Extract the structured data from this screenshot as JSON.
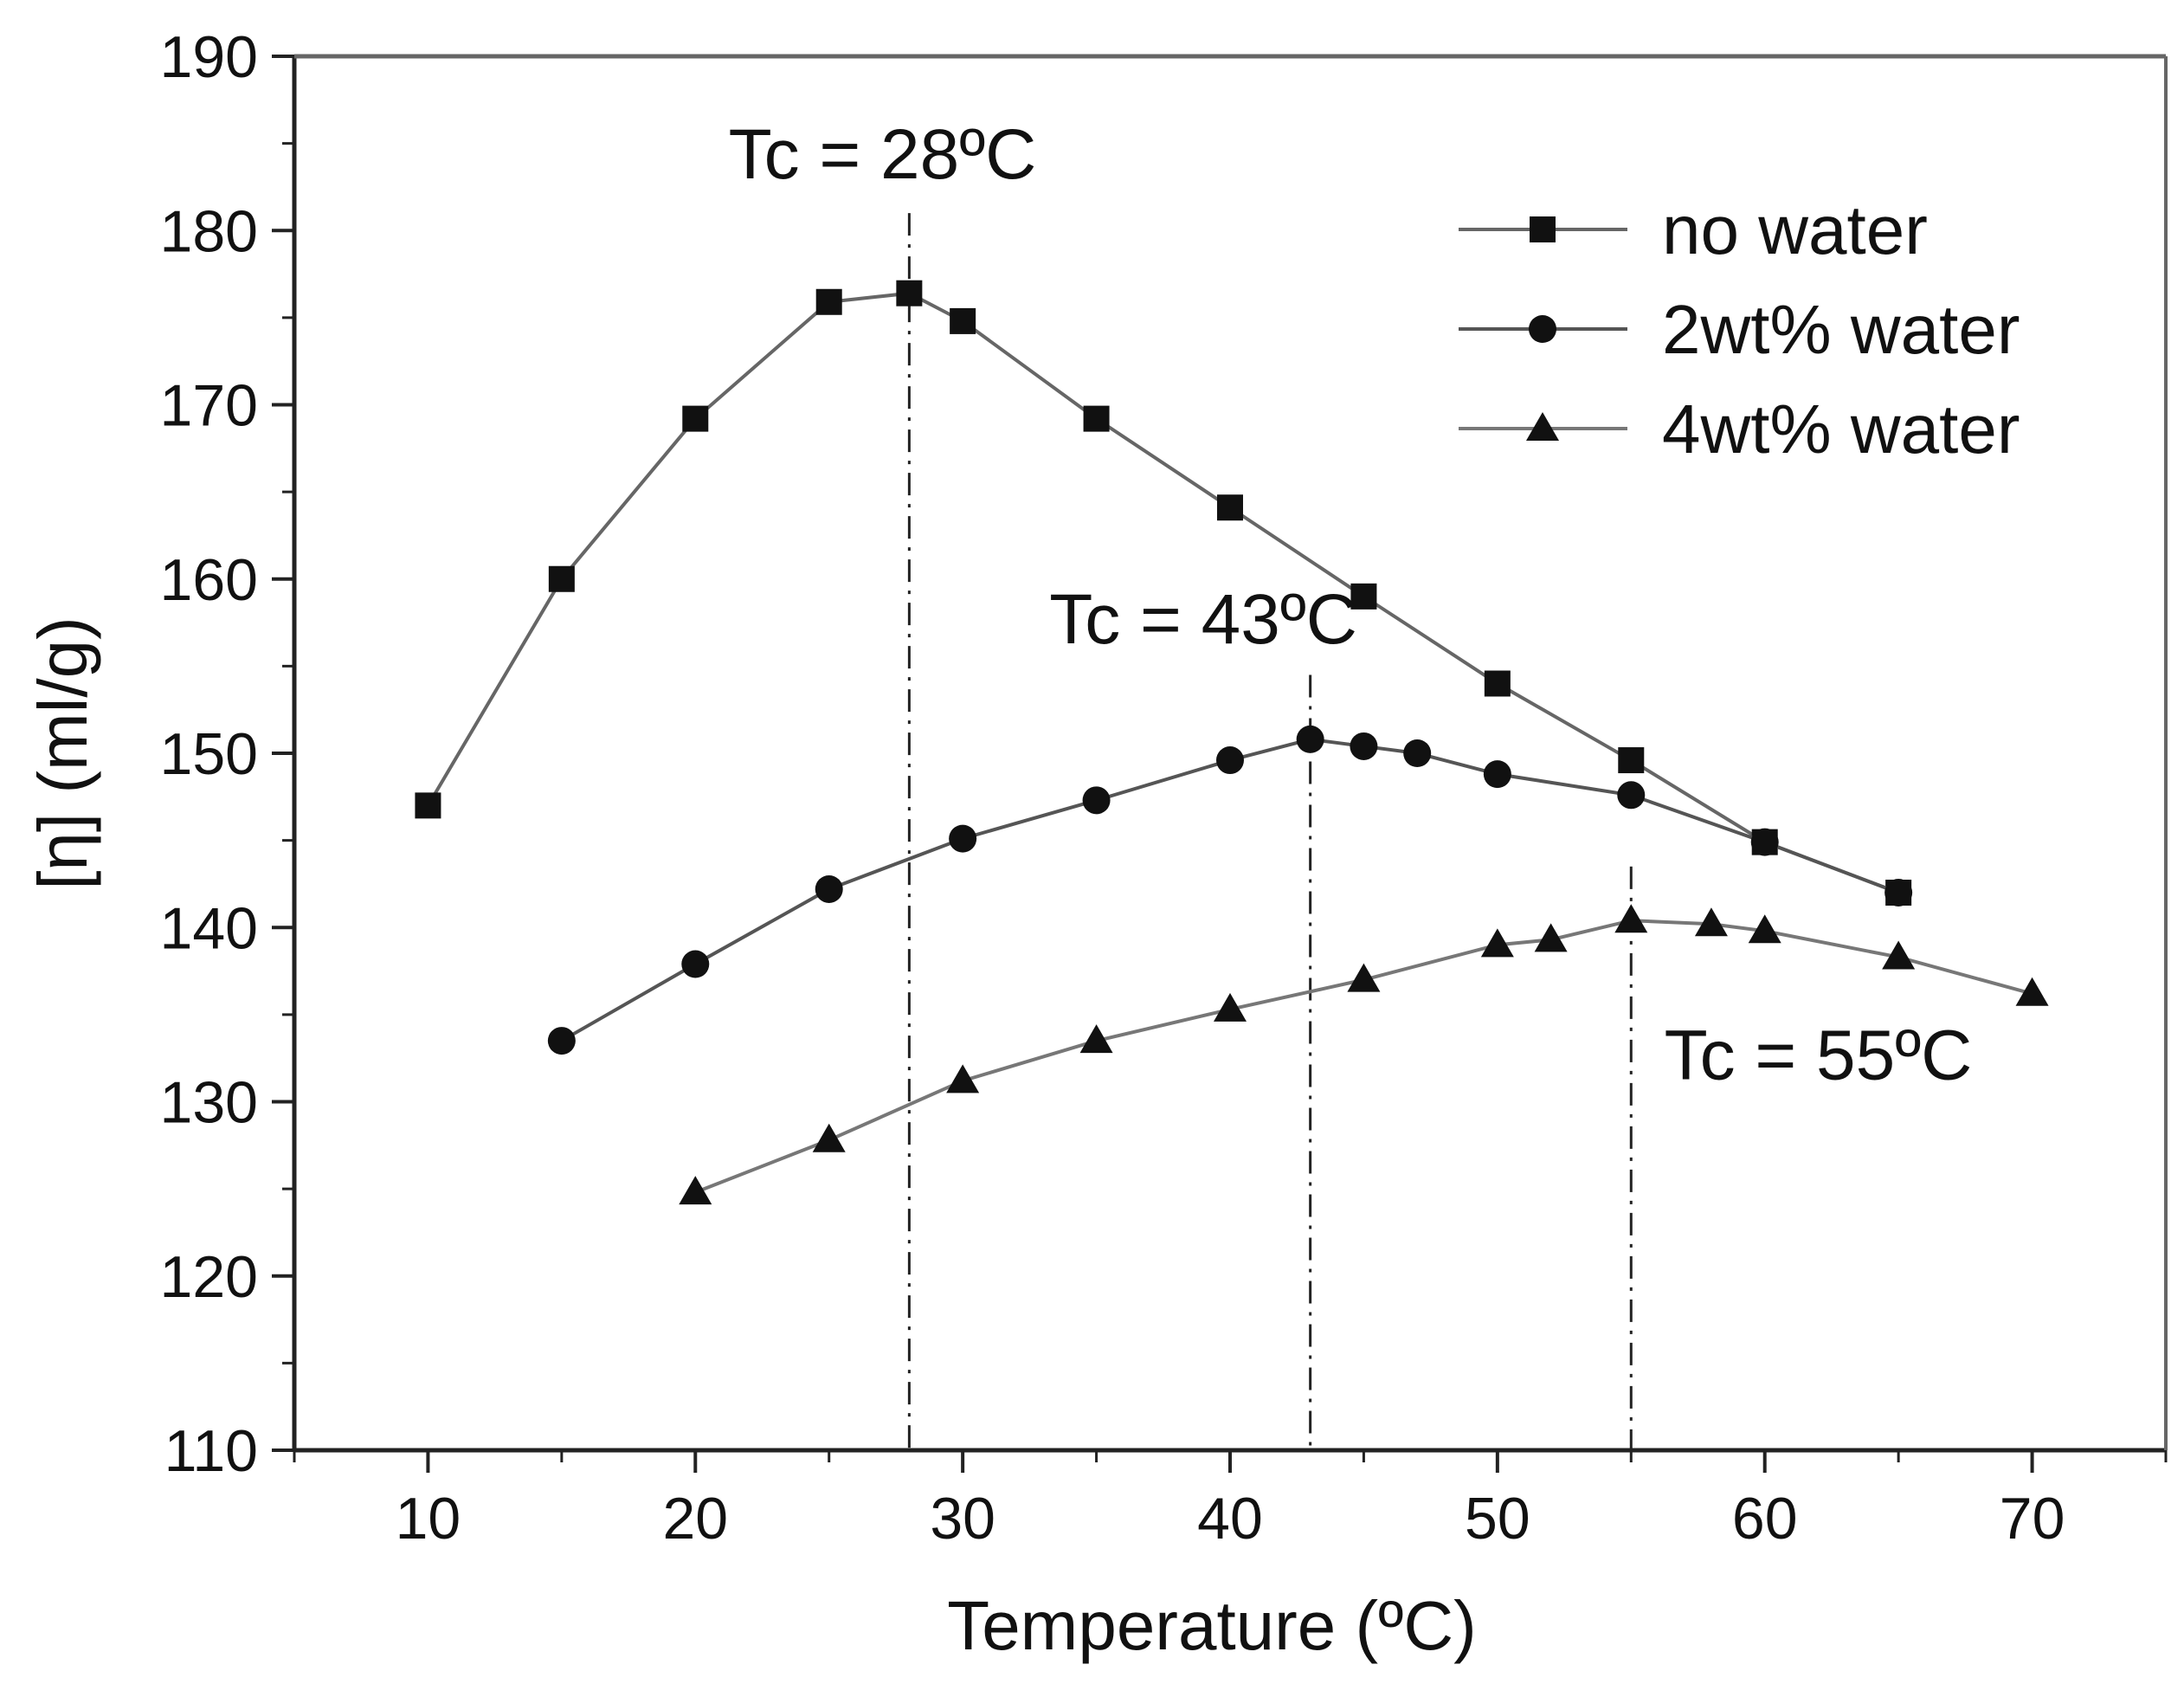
{
  "chart_data": {
    "type": "line",
    "title": "",
    "xlabel": "Temperature (ºC)",
    "ylabel": "[η] (ml/g)",
    "xlim": [
      5,
      75
    ],
    "ylim": [
      110,
      190
    ],
    "xticks": [
      10,
      20,
      30,
      40,
      50,
      60,
      70
    ],
    "yticks": [
      110,
      120,
      130,
      140,
      150,
      160,
      170,
      180,
      190
    ],
    "grid": false,
    "legend_position": "top-right",
    "series": [
      {
        "name": "no water",
        "marker": "square",
        "x": [
          10,
          15,
          20,
          25,
          28,
          30,
          35,
          40,
          45,
          50,
          55,
          60,
          65
        ],
        "y": [
          147,
          160,
          169.2,
          175.9,
          176.4,
          174.8,
          169.2,
          164.1,
          159,
          154,
          149.6,
          144.9,
          142
        ]
      },
      {
        "name": "2wt% water",
        "marker": "circle",
        "x": [
          15,
          20,
          25,
          30,
          35,
          40,
          43,
          45,
          47,
          50,
          55,
          60,
          65
        ],
        "y": [
          133.5,
          137.9,
          142.2,
          145.1,
          147.3,
          149.6,
          150.8,
          150.4,
          150,
          148.8,
          147.6,
          144.9,
          142
        ]
      },
      {
        "name": "4wt% water",
        "marker": "triangle",
        "x": [
          20,
          25,
          30,
          35,
          40,
          45,
          50,
          52,
          55,
          58,
          60,
          65,
          70
        ],
        "y": [
          124.8,
          127.8,
          131.2,
          133.5,
          135.3,
          137,
          139,
          139.3,
          140.4,
          140.2,
          139.8,
          138.3,
          136.2
        ]
      }
    ],
    "annotations": [
      {
        "text": "Tc = 28ºC",
        "x": 28,
        "line_top": 181,
        "label_anchor": [
          27,
          183
        ]
      },
      {
        "text": "Tc = 43ºC",
        "x": 43,
        "line_top": 154.5,
        "label_anchor": [
          39,
          156.3
        ]
      },
      {
        "text": "Tc = 55ºC",
        "x": 55,
        "line_top": 143.5,
        "label_anchor": [
          62,
          131.3
        ]
      }
    ]
  }
}
